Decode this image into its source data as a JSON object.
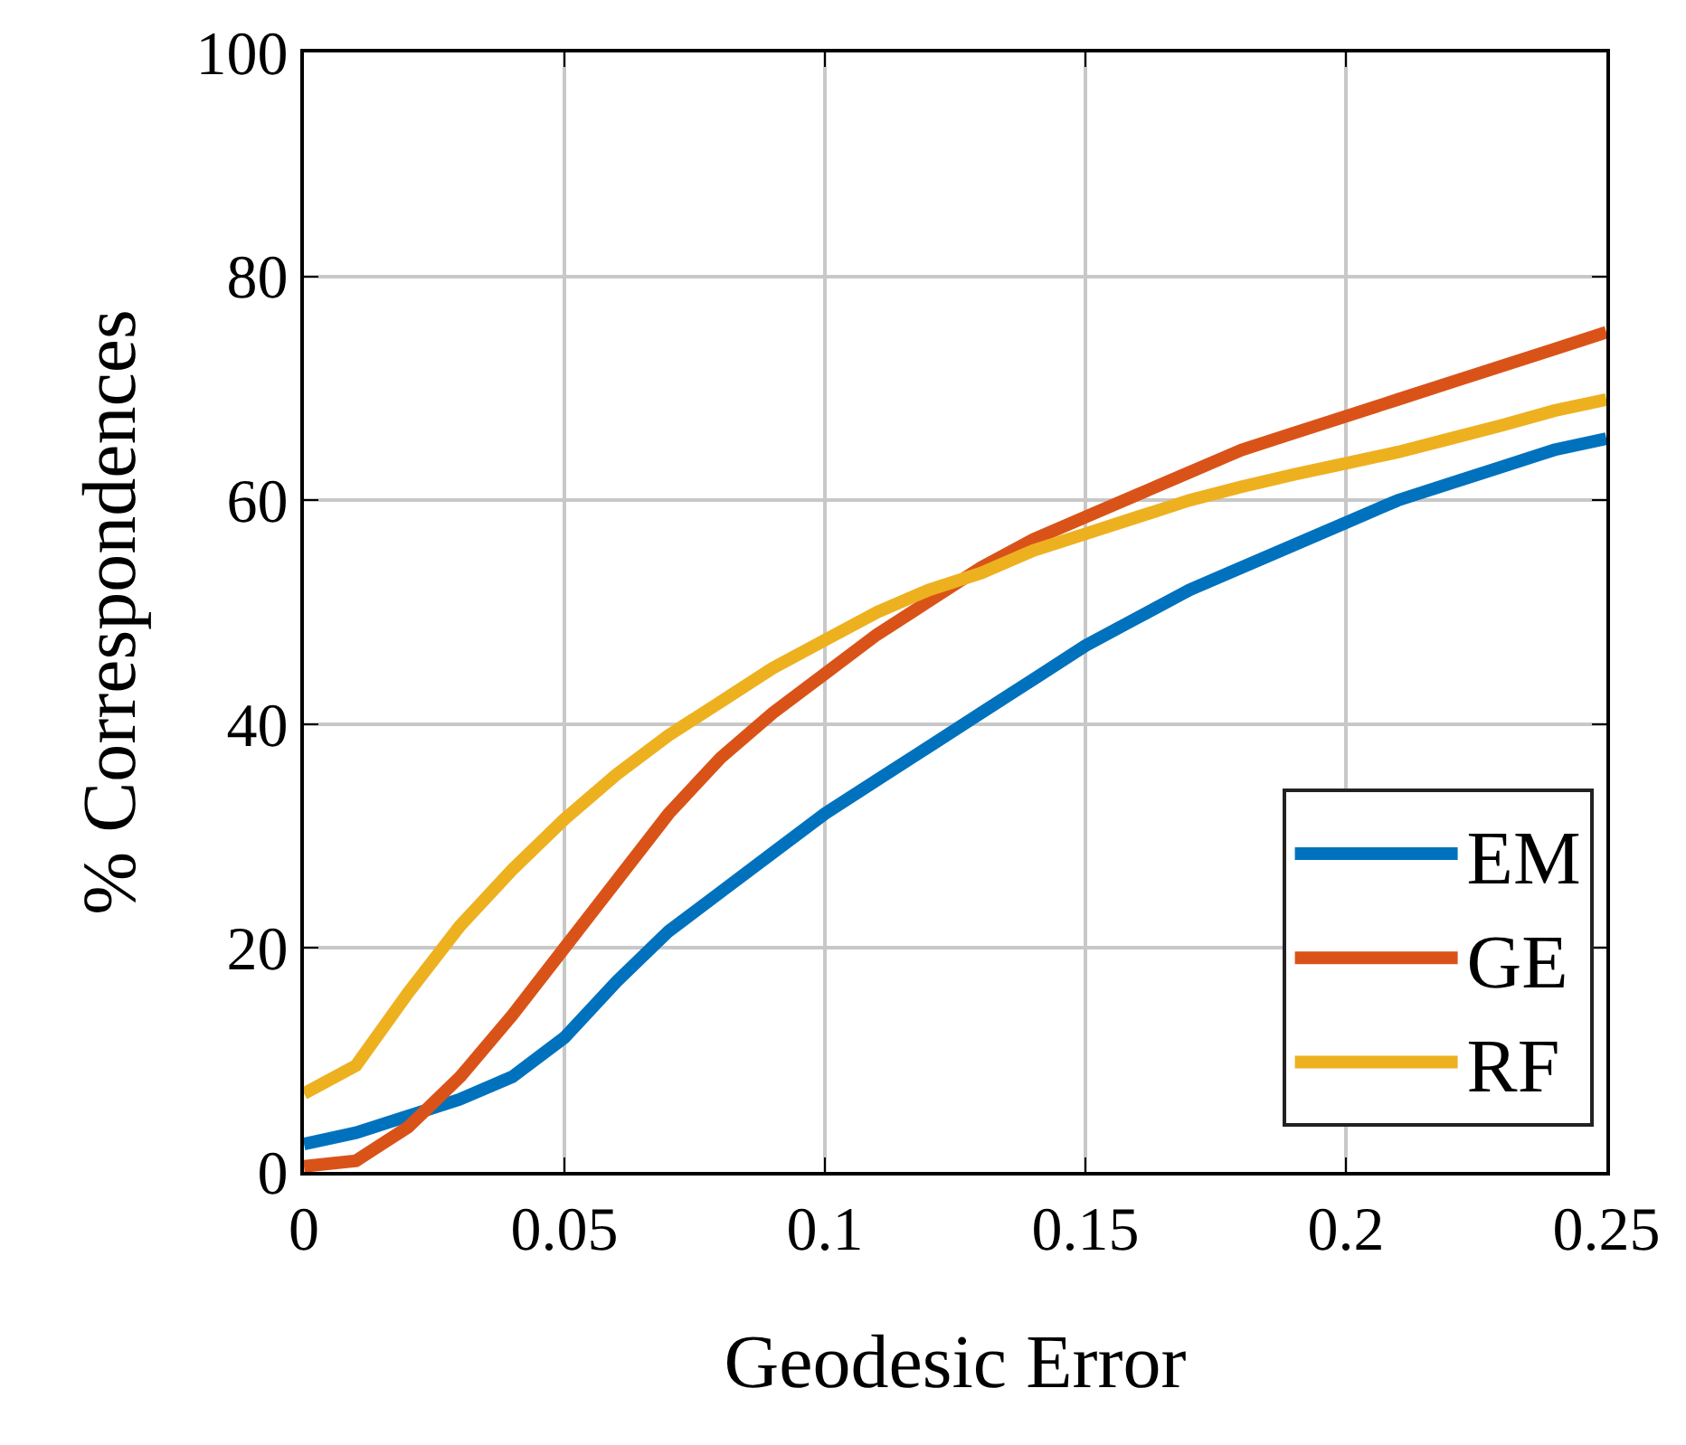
{
  "chart_data": {
    "type": "line",
    "xlabel": "Geodesic Error",
    "ylabel": "% Correspondences",
    "x": [
      0,
      0.01,
      0.02,
      0.03,
      0.04,
      0.05,
      0.06,
      0.07,
      0.08,
      0.09,
      0.1,
      0.11,
      0.12,
      0.13,
      0.14,
      0.15,
      0.16,
      0.17,
      0.18,
      0.19,
      0.2,
      0.21,
      0.22,
      0.23,
      0.24,
      0.25
    ],
    "series": [
      {
        "name": "EM",
        "color": "#0072bd",
        "values": [
          2.5,
          3.5,
          5,
          6.5,
          8.5,
          12,
          17,
          21.5,
          25,
          28.5,
          32,
          35,
          38,
          41,
          44,
          47,
          49.5,
          52,
          54,
          56,
          58,
          60,
          61.5,
          63,
          64.5,
          65.5
        ]
      },
      {
        "name": "GE",
        "color": "#d95319",
        "values": [
          0.5,
          1,
          4,
          8.5,
          14,
          20,
          26,
          32,
          37,
          41,
          44.5,
          48,
          51,
          54,
          56.5,
          58.5,
          60.5,
          62.5,
          64.5,
          66,
          67.5,
          69,
          70.5,
          72,
          73.5,
          75
        ]
      },
      {
        "name": "RF",
        "color": "#edb120",
        "values": [
          7,
          9.5,
          16,
          22,
          27,
          31.5,
          35.5,
          39,
          42,
          45,
          47.5,
          50,
          52,
          53.5,
          55.5,
          57,
          58.5,
          60,
          61.2,
          62.3,
          63.3,
          64.3,
          65.5,
          66.7,
          68,
          69
        ]
      }
    ],
    "xlim": [
      0,
      0.25
    ],
    "xticks": [
      0,
      0.05,
      0.1,
      0.15,
      0.2,
      0.25
    ],
    "ylim": [
      0,
      100
    ],
    "yticks": [
      0,
      20,
      40,
      60,
      80,
      100
    ],
    "grid": true,
    "legend": "bottom right",
    "marker": "none",
    "line_style": "solid"
  }
}
